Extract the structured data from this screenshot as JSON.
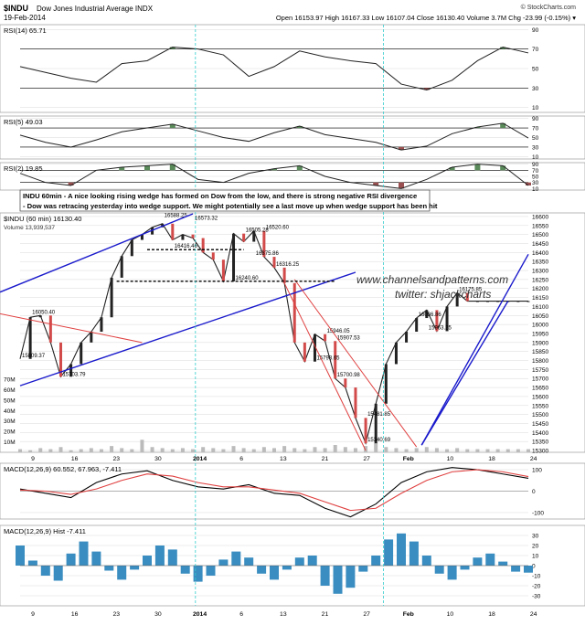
{
  "header": {
    "symbol": "$INDU",
    "name": "Dow Jones Industrial Average  INDX",
    "date": "19-Feb-2014",
    "quote": "Open 16153.97  High 16167.33  Low 16107.04  Close 16130.40  Volume 3.7M  Chg -23.99 (-0.15%) ▾",
    "credit": "© StockCharts.com"
  },
  "colors": {
    "price_line": "#222222",
    "candle_up": "#222222",
    "candle_down": "#d24a4a",
    "trendline_blue": "#1a1acc",
    "trendline_red": "#e04040",
    "rsi_fill_high": "#5a8a5a",
    "rsi_fill_low": "#9a5050",
    "hist_bar": "#3a8dc0",
    "vol_bar": "#bbbbbb",
    "grid": "#d9d9d9",
    "dashed_cyan": "#33cccc"
  },
  "note": {
    "line1": "INDU 60min - A nice looking rising wedge has formed on Dow from the low, and there is strong negative RSI divergence",
    "line2": "- Dow was retracing yesterday into wedge support. We might potentially see a last move up when wedge support has been hit"
  },
  "watermark": {
    "line1": "www.channelsandpatterns.com",
    "line2": "twitter: shjackcharts"
  },
  "chart_data": [
    {
      "type": "line",
      "panel": "rsi14",
      "title": "RSI(14) 65.71",
      "ylim": [
        5,
        95
      ],
      "ticks": [
        "90",
        "70",
        "50",
        "30",
        "10"
      ],
      "x": [
        0,
        5,
        10,
        15,
        20,
        25,
        30,
        35,
        40,
        45,
        50,
        55,
        60,
        65,
        70,
        75,
        80,
        85,
        90,
        95,
        100
      ],
      "values": [
        52,
        46,
        40,
        36,
        55,
        58,
        72,
        70,
        64,
        42,
        52,
        68,
        62,
        58,
        55,
        34,
        28,
        38,
        58,
        72,
        66
      ]
    },
    {
      "type": "line",
      "panel": "rsi5",
      "title": "RSI(5) 49.03",
      "ylim": [
        5,
        95
      ],
      "ticks": [
        "90",
        "70",
        "50",
        "30",
        "10"
      ],
      "x": [
        0,
        5,
        10,
        15,
        20,
        25,
        30,
        35,
        40,
        45,
        50,
        55,
        60,
        65,
        70,
        75,
        80,
        85,
        90,
        95,
        100
      ],
      "values": [
        55,
        40,
        30,
        45,
        62,
        70,
        78,
        64,
        50,
        42,
        60,
        74,
        56,
        48,
        40,
        24,
        32,
        58,
        72,
        80,
        49
      ]
    },
    {
      "type": "line",
      "panel": "rsi2",
      "title": "RSI(2) 19.85",
      "ylim": [
        5,
        95
      ],
      "ticks": [
        "90",
        "70",
        "50",
        "30",
        "10"
      ],
      "x": [
        0,
        5,
        10,
        15,
        20,
        25,
        30,
        35,
        40,
        45,
        50,
        55,
        60,
        65,
        70,
        75,
        80,
        85,
        90,
        95,
        100
      ],
      "values": [
        60,
        30,
        20,
        70,
        80,
        85,
        90,
        40,
        30,
        60,
        75,
        85,
        50,
        30,
        20,
        10,
        40,
        80,
        90,
        85,
        20
      ]
    },
    {
      "type": "line",
      "panel": "price",
      "title": "$INDU (60 min) 16130.40",
      "volume_label": "Volume 13,939,537",
      "ylim": [
        15290,
        16620
      ],
      "ticks": [
        "16600",
        "16550",
        "16500",
        "16450",
        "16400",
        "16350",
        "16300",
        "16250",
        "16200",
        "16150",
        "16100",
        "16050",
        "16000",
        "15950",
        "15900",
        "15850",
        "15800",
        "15750",
        "15700",
        "15650",
        "15600",
        "15550",
        "15500",
        "15450",
        "15400",
        "15350",
        "15300"
      ],
      "x_labels": [
        "9",
        "16",
        "23",
        "30",
        "2014",
        "6",
        "13",
        "21",
        "27",
        "Feb",
        "10",
        "18",
        "24"
      ],
      "x": [
        0,
        2,
        4,
        6,
        8,
        10,
        12,
        14,
        16,
        18,
        20,
        22,
        24,
        26,
        28,
        30,
        32,
        34,
        36,
        38,
        40,
        42,
        44,
        46,
        48,
        50,
        52,
        54,
        56,
        58,
        60,
        62,
        64,
        66,
        68,
        70,
        72,
        74,
        76,
        78,
        80,
        82,
        84,
        86,
        88,
        90,
        92,
        94,
        96,
        98,
        100
      ],
      "values": [
        15809,
        16040,
        16050,
        15900,
        15710,
        15780,
        15900,
        15960,
        16040,
        16260,
        16380,
        16470,
        16500,
        16540,
        16560,
        16470,
        16500,
        16480,
        16400,
        16360,
        16240,
        16505,
        16460,
        16520,
        16376,
        16316,
        16230,
        15900,
        15794,
        15946,
        15908,
        15700,
        15650,
        15481,
        15340,
        15560,
        15780,
        15900,
        15960,
        16036,
        16080,
        15963,
        16100,
        16176,
        16130,
        16130,
        16130,
        16130,
        16130,
        16130,
        16130
      ],
      "annotations": [
        {
          "label": "16050.40",
          "x": 2,
          "y": 16050
        },
        {
          "label": "15809.37",
          "x": 0,
          "y": 15809
        },
        {
          "label": "15703.79",
          "x": 8,
          "y": 15704
        },
        {
          "label": "16588.25",
          "x": 28,
          "y": 16588
        },
        {
          "label": "16416.46",
          "x": 30,
          "y": 16416
        },
        {
          "label": "16573.32",
          "x": 34,
          "y": 16573
        },
        {
          "label": "16505.28",
          "x": 44,
          "y": 16505
        },
        {
          "label": "16520.60",
          "x": 48,
          "y": 16520
        },
        {
          "label": "16375.86",
          "x": 46,
          "y": 16376
        },
        {
          "label": "16316.25",
          "x": 50,
          "y": 16316
        },
        {
          "label": "16240.60",
          "x": 42,
          "y": 16240
        },
        {
          "label": "15946.05",
          "x": 60,
          "y": 15946
        },
        {
          "label": "15907.53",
          "x": 62,
          "y": 15908
        },
        {
          "label": "15793.65",
          "x": 58,
          "y": 15794
        },
        {
          "label": "15700.98",
          "x": 62,
          "y": 15700
        },
        {
          "label": "15481.85",
          "x": 68,
          "y": 15482
        },
        {
          "label": "15340.69",
          "x": 68,
          "y": 15340
        },
        {
          "label": "16036.86",
          "x": 78,
          "y": 16037
        },
        {
          "label": "16175.85",
          "x": 86,
          "y": 16176
        },
        {
          "label": "15963.25",
          "x": 80,
          "y": 15963
        }
      ],
      "volume": [
        3,
        2,
        4,
        3,
        5,
        2,
        3,
        4,
        3,
        6,
        4,
        3,
        12,
        5,
        4,
        3,
        4,
        3,
        5,
        4,
        3,
        6,
        4,
        3,
        5,
        4,
        6,
        4,
        3,
        5,
        4,
        7,
        5,
        4,
        6,
        9,
        5,
        4,
        3,
        4,
        5,
        4,
        3,
        4,
        3,
        3,
        3,
        3,
        3,
        3,
        3
      ],
      "volume_ticks": [
        "70M",
        "60M",
        "50M",
        "40M",
        "30M",
        "20M",
        "10M"
      ]
    },
    {
      "type": "line",
      "panel": "macd",
      "title": "MACD(12,26,9) 60.552, 67.963, -7.411",
      "ylim": [
        -130,
        130
      ],
      "ticks": [
        "100",
        "0",
        "-100"
      ],
      "x": [
        0,
        5,
        10,
        15,
        20,
        25,
        30,
        35,
        40,
        45,
        50,
        55,
        60,
        65,
        70,
        75,
        80,
        85,
        90,
        95,
        100
      ],
      "series": [
        {
          "name": "MACD",
          "values": [
            10,
            -10,
            -30,
            40,
            80,
            95,
            50,
            20,
            10,
            30,
            -10,
            -20,
            -80,
            -120,
            -60,
            40,
            90,
            110,
            100,
            80,
            60
          ]
        },
        {
          "name": "Signal",
          "values": [
            5,
            0,
            -15,
            10,
            50,
            80,
            70,
            40,
            20,
            20,
            5,
            -10,
            -50,
            -90,
            -80,
            -10,
            50,
            90,
            100,
            90,
            68
          ]
        }
      ]
    },
    {
      "type": "bar",
      "panel": "hist",
      "title": "MACD(12,26,9) Hist -7.411",
      "ylim": [
        -40,
        40
      ],
      "ticks": [
        "30",
        "20",
        "10",
        "0",
        "-10",
        "-20",
        "-30"
      ],
      "x": [
        0,
        2.5,
        5,
        7.5,
        10,
        12.5,
        15,
        17.5,
        20,
        22.5,
        25,
        27.5,
        30,
        32.5,
        35,
        37.5,
        40,
        42.5,
        45,
        47.5,
        50,
        52.5,
        55,
        57.5,
        60,
        62.5,
        65,
        67.5,
        70,
        72.5,
        75,
        77.5,
        80,
        82.5,
        85,
        87.5,
        90,
        92.5,
        95,
        97.5,
        100
      ],
      "values": [
        20,
        5,
        -10,
        -15,
        12,
        24,
        14,
        -5,
        -14,
        -4,
        10,
        20,
        16,
        -8,
        -16,
        -10,
        6,
        14,
        8,
        -8,
        -14,
        -4,
        8,
        10,
        -20,
        -28,
        -22,
        -6,
        10,
        26,
        32,
        24,
        10,
        -8,
        -14,
        -4,
        8,
        12,
        4,
        -6,
        -7
      ]
    }
  ]
}
